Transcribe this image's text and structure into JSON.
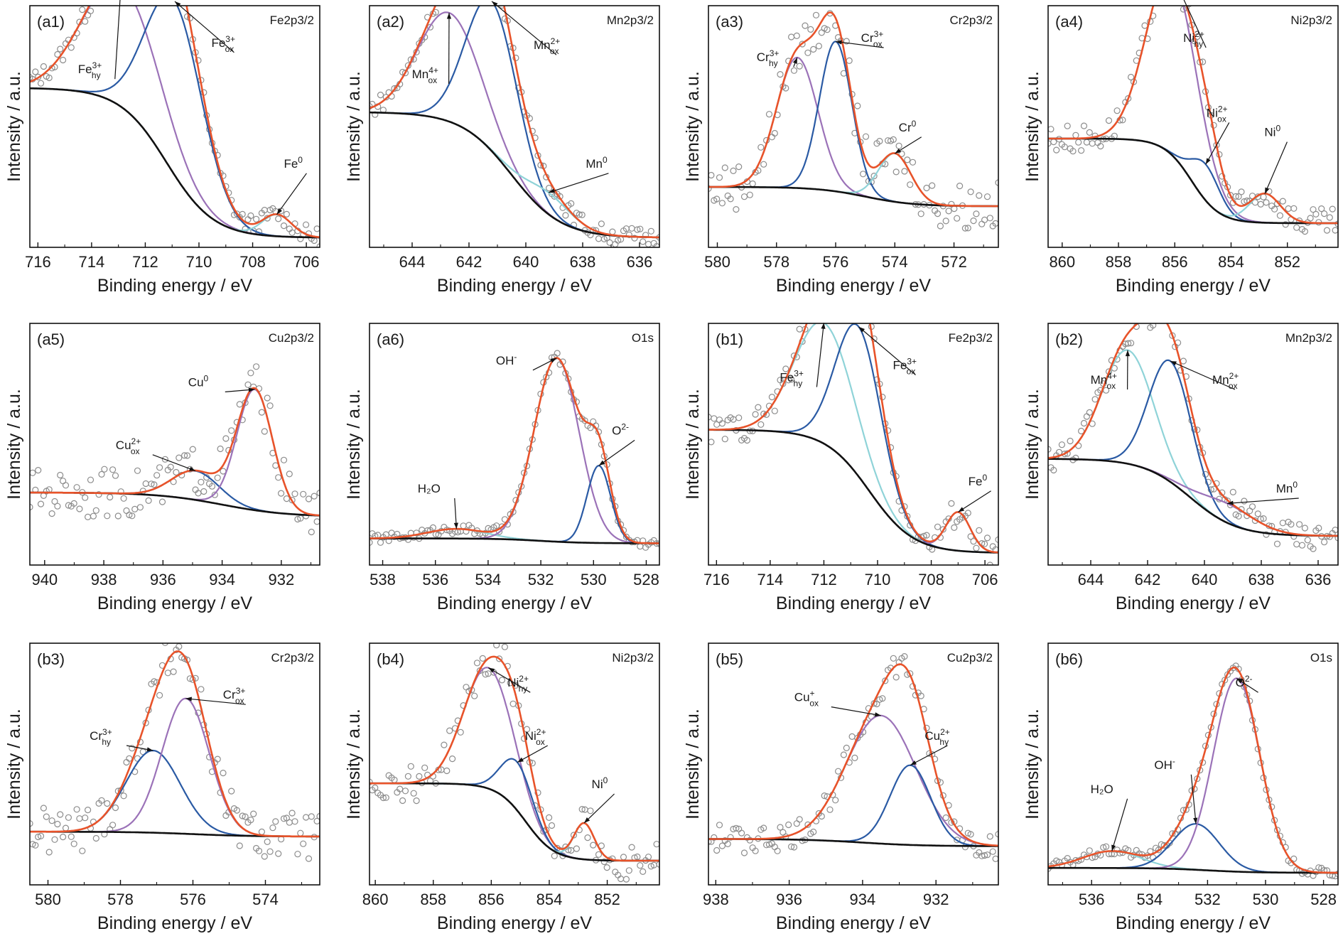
{
  "figure": {
    "xlabel": "Binding energy / eV",
    "ylabel": "Intensity / a.u."
  },
  "colors": {
    "envelope": "#e8532a",
    "background": "#111111",
    "points": "#8c8c8c",
    "blue": "#2a5aa4",
    "purple": "#9b72b8",
    "cyan": "#8fd3d8"
  },
  "chart_data": [
    {
      "id": "a1",
      "type": "line",
      "panel_label": "(a1)",
      "region": "Fe2p3/2",
      "xlim": [
        716.3,
        705.5
      ],
      "ticks": [
        716,
        714,
        712,
        710,
        708,
        706
      ],
      "xlabel": "Binding energy / eV",
      "ylabel": "Intensity / a.u.",
      "grid": false,
      "background_curve": {
        "hi": 0.66,
        "lo": 0.04,
        "mid": 711.2,
        "w": 1.6
      },
      "components": [
        {
          "center": 712.9,
          "height": 0.51,
          "sigma": 1.4,
          "color": "#9b72b8",
          "peak_label": "Fe_hy^3+"
        },
        {
          "center": 710.9,
          "height": 0.72,
          "sigma": 1.05,
          "color": "#2a5aa4",
          "peak_label": "Fe_ox^3+"
        },
        {
          "center": 707.1,
          "height": 0.09,
          "sigma": 0.55,
          "color": "#8fd3d8",
          "peak_label": "Fe^0"
        }
      ],
      "annotations": [
        {
          "text": "Fe",
          "sup": "3+",
          "sub": "hy",
          "at_x": 712.9,
          "tx": [
            0.22,
            0.18
          ]
        },
        {
          "text": "Fe",
          "sup": "3+",
          "sub": "ox",
          "at_x": 710.9,
          "tx": [
            0.68,
            0.07
          ]
        },
        {
          "text": "Fe",
          "sup": "0",
          "sub": "",
          "at_x": 707.1,
          "tx": [
            0.93,
            0.57
          ]
        }
      ],
      "noise": 0.02
    },
    {
      "id": "a2",
      "type": "line",
      "panel_label": "(a2)",
      "region": "Mn2p3/2",
      "xlim": [
        645.5,
        635.3
      ],
      "ticks": [
        644,
        642,
        640,
        638,
        636
      ],
      "xlabel": "Binding energy / eV",
      "ylabel": "Intensity / a.u.",
      "grid": false,
      "background_curve": {
        "hi": 0.56,
        "lo": 0.04,
        "mid": 640.5,
        "w": 1.6
      },
      "components": [
        {
          "center": 642.7,
          "height": 0.45,
          "sigma": 1.1,
          "color": "#9b72b8",
          "peak_label": "Mn_ox^4+"
        },
        {
          "center": 641.2,
          "height": 0.62,
          "sigma": 0.9,
          "color": "#2a5aa4",
          "peak_label": "Mn_ox^2+"
        },
        {
          "center": 639.2,
          "height": 0.09,
          "sigma": 0.8,
          "color": "#8fd3d8",
          "peak_label": "Mn^0"
        }
      ],
      "annotations": [
        {
          "text": "Mn",
          "sup": "4+",
          "sub": "ox",
          "at_x": 642.7,
          "tx": [
            0.2,
            0.2
          ]
        },
        {
          "text": "Mn",
          "sup": "2+",
          "sub": "ox",
          "at_x": 641.2,
          "tx": [
            0.62,
            0.08
          ]
        },
        {
          "text": "Mn",
          "sup": "0",
          "sub": "",
          "at_x": 639.2,
          "tx": [
            0.8,
            0.57
          ]
        }
      ],
      "noise": 0.02
    },
    {
      "id": "a3",
      "type": "line",
      "panel_label": "(a3)",
      "region": "Cr2p3/2",
      "xlim": [
        580.3,
        570.5
      ],
      "ticks": [
        580,
        578,
        576,
        574,
        572
      ],
      "xlabel": "Binding energy / eV",
      "ylabel": "Intensity / a.u.",
      "grid": false,
      "background_curve": {
        "hi": 0.25,
        "lo": 0.17,
        "mid": 575,
        "w": 1.5
      },
      "components": [
        {
          "center": 577.3,
          "height": 0.54,
          "sigma": 0.7,
          "color": "#9b72b8",
          "peak_label": "Cr_hy^3+"
        },
        {
          "center": 576.0,
          "height": 0.62,
          "sigma": 0.55,
          "color": "#2a5aa4",
          "peak_label": "Cr_ox^3+"
        },
        {
          "center": 574.0,
          "height": 0.2,
          "sigma": 0.55,
          "color": "#8fd3d8",
          "peak_label": "Cr^0"
        }
      ],
      "annotations": [
        {
          "text": "Cr",
          "sup": "3+",
          "sub": "hy",
          "at_x": 577.3,
          "tx": [
            0.22,
            0.13
          ]
        },
        {
          "text": "Cr",
          "sup": "3+",
          "sub": "ox",
          "at_x": 576.0,
          "tx": [
            0.58,
            0.05
          ]
        },
        {
          "text": "Cr",
          "sup": "0",
          "sub": "",
          "at_x": 574.0,
          "tx": [
            0.71,
            0.42
          ]
        }
      ],
      "noise": 0.05
    },
    {
      "id": "a4",
      "type": "line",
      "panel_label": "(a4)",
      "region": "Ni2p3/2",
      "xlim": [
        860.5,
        850.2
      ],
      "ticks": [
        860,
        858,
        856,
        854,
        852
      ],
      "xlabel": "Binding energy / eV",
      "ylabel": "Intensity / a.u.",
      "grid": false,
      "background_curve": {
        "hi": 0.45,
        "lo": 0.1,
        "mid": 855.4,
        "w": 0.9
      },
      "components": [
        {
          "center": 856.1,
          "height": 0.75,
          "sigma": 0.9,
          "color": "#9b72b8",
          "peak_label": "Ni_hy^2+"
        },
        {
          "center": 854.9,
          "height": 0.15,
          "sigma": 0.5,
          "color": "#2a5aa4",
          "peak_label": "Ni_ox^2+"
        },
        {
          "center": 852.8,
          "height": 0.12,
          "sigma": 0.55,
          "color": "#8fd3d8",
          "peak_label": "Ni^0"
        }
      ],
      "annotations": [
        {
          "text": "Ni",
          "sup": "2+",
          "sub": "hy",
          "at_x": 856.1,
          "tx": [
            0.52,
            0.05
          ]
        },
        {
          "text": "Ni",
          "sup": "2+",
          "sub": "ox",
          "at_x": 854.9,
          "tx": [
            0.6,
            0.36
          ]
        },
        {
          "text": "Ni",
          "sup": "0",
          "sub": "",
          "at_x": 852.8,
          "tx": [
            0.8,
            0.44
          ]
        }
      ],
      "noise": 0.03
    },
    {
      "id": "a5",
      "type": "line",
      "panel_label": "(a5)",
      "region": "Cu2p3/2",
      "xlim": [
        940.5,
        930.7
      ],
      "ticks": [
        940,
        938,
        936,
        934,
        932
      ],
      "xlabel": "Binding energy / eV",
      "ylabel": "Intensity / a.u.",
      "grid": false,
      "background_curve": {
        "hi": 0.3,
        "lo": 0.2,
        "mid": 934,
        "w": 2.0
      },
      "components": [
        {
          "center": 934.9,
          "height": 0.12,
          "sigma": 0.8,
          "color": "#2a5aa4",
          "peak_label": "Cu_ox^2+"
        },
        {
          "center": 932.9,
          "height": 0.5,
          "sigma": 0.6,
          "color": "#9b72b8",
          "peak_label": "Cu^0"
        }
      ],
      "annotations": [
        {
          "text": "Cu",
          "sup": "2+",
          "sub": "ox",
          "at_x": 934.9,
          "tx": [
            0.35,
            0.42
          ]
        },
        {
          "text": "Cu",
          "sup": "0",
          "sub": "",
          "at_x": 932.9,
          "tx": [
            0.6,
            0.16
          ]
        }
      ],
      "noise": 0.05
    },
    {
      "id": "a6",
      "type": "line",
      "panel_label": "(a6)",
      "region": "O1s",
      "xlim": [
        538.5,
        527.5
      ],
      "ticks": [
        538,
        536,
        534,
        532,
        530,
        528
      ],
      "xlabel": "Binding energy / eV",
      "ylabel": "Intensity / a.u.",
      "grid": false,
      "background_curve": {
        "hi": 0.11,
        "lo": 0.09,
        "mid": 532,
        "w": 1.5
      },
      "components": [
        {
          "center": 535.2,
          "height": 0.04,
          "sigma": 1.1,
          "color": "#8fd3d8",
          "peak_label": "H2O"
        },
        {
          "center": 531.4,
          "height": 0.76,
          "sigma": 0.85,
          "color": "#9b72b8",
          "peak_label": "OH-"
        },
        {
          "center": 529.8,
          "height": 0.32,
          "sigma": 0.45,
          "color": "#2a5aa4",
          "peak_label": "O2-"
        }
      ],
      "annotations": [
        {
          "text": "H₂O",
          "sup": "",
          "sub": "",
          "at_x": 535.2,
          "tx": [
            0.22,
            0.6
          ]
        },
        {
          "text": "OH",
          "sup": "-",
          "sub": "",
          "at_x": 531.4,
          "tx": [
            0.49,
            0.07
          ]
        },
        {
          "text": "O",
          "sup": "2-",
          "sub": "",
          "at_x": 529.8,
          "tx": [
            0.89,
            0.36
          ]
        }
      ],
      "noise": 0.01
    },
    {
      "id": "b1",
      "type": "line",
      "panel_label": "(b1)",
      "region": "Fe2p3/2",
      "xlim": [
        716.3,
        705.5
      ],
      "ticks": [
        716,
        714,
        712,
        710,
        708,
        706
      ],
      "xlabel": "Binding energy / eV",
      "ylabel": "Intensity / a.u.",
      "grid": false,
      "background_curve": {
        "hi": 0.56,
        "lo": 0.05,
        "mid": 710.3,
        "w": 1.5
      },
      "components": [
        {
          "center": 712.0,
          "height": 0.5,
          "sigma": 1.1,
          "color": "#8fd3d8",
          "peak_label": "Fe_hy^3+"
        },
        {
          "center": 710.7,
          "height": 0.62,
          "sigma": 0.85,
          "color": "#2a5aa4",
          "peak_label": "Fe_ox^3+"
        },
        {
          "center": 707.0,
          "height": 0.16,
          "sigma": 0.45,
          "color": "#9b72b8",
          "peak_label": "Fe^0"
        }
      ],
      "annotations": [
        {
          "text": "Fe",
          "sup": "3+",
          "sub": "hy",
          "at_x": 712.0,
          "tx": [
            0.3,
            0.14
          ]
        },
        {
          "text": "Fe",
          "sup": "3+",
          "sub": "ox",
          "at_x": 710.7,
          "tx": [
            0.69,
            0.09
          ]
        },
        {
          "text": "Fe",
          "sup": "0",
          "sub": "",
          "at_x": 707.0,
          "tx": [
            0.95,
            0.57
          ]
        }
      ],
      "noise": 0.03
    },
    {
      "id": "b2",
      "type": "line",
      "panel_label": "(b2)",
      "region": "Mn2p3/2",
      "xlim": [
        645.5,
        635.3
      ],
      "ticks": [
        644,
        642,
        640,
        638,
        636
      ],
      "xlabel": "Binding energy / eV",
      "ylabel": "Intensity / a.u.",
      "grid": false,
      "background_curve": {
        "hi": 0.44,
        "lo": 0.12,
        "mid": 640.5,
        "w": 1.5
      },
      "components": [
        {
          "center": 642.7,
          "height": 0.47,
          "sigma": 0.9,
          "color": "#8fd3d8",
          "peak_label": "Mn_ox^4+"
        },
        {
          "center": 641.2,
          "height": 0.5,
          "sigma": 0.75,
          "color": "#2a5aa4",
          "peak_label": "Mn_ox^2+"
        },
        {
          "center": 639.2,
          "height": 0.08,
          "sigma": 1.0,
          "color": "#9b72b8",
          "peak_label": "Mn^0"
        }
      ],
      "annotations": [
        {
          "text": "Mn",
          "sup": "4+",
          "sub": "ox",
          "at_x": 642.7,
          "tx": [
            0.2,
            0.15
          ]
        },
        {
          "text": "Mn",
          "sup": "2+",
          "sub": "ox",
          "at_x": 641.2,
          "tx": [
            0.62,
            0.15
          ]
        },
        {
          "text": "Mn",
          "sup": "0",
          "sub": "",
          "at_x": 639.2,
          "tx": [
            0.84,
            0.6
          ]
        }
      ],
      "noise": 0.03
    },
    {
      "id": "b3",
      "type": "line",
      "panel_label": "(b3)",
      "region": "Cr2p3/2",
      "xlim": [
        580.5,
        572.5
      ],
      "ticks": [
        580,
        578,
        576,
        574
      ],
      "xlabel": "Binding energy / eV",
      "ylabel": "Intensity / a.u.",
      "grid": false,
      "background_curve": {
        "hi": 0.22,
        "lo": 0.2,
        "mid": 576,
        "w": 1.5
      },
      "components": [
        {
          "center": 577.1,
          "height": 0.34,
          "sigma": 0.75,
          "color": "#2a5aa4",
          "peak_label": "Cr_hy^3+"
        },
        {
          "center": 576.2,
          "height": 0.56,
          "sigma": 0.65,
          "color": "#9b72b8",
          "peak_label": "Cr_ox^3+"
        }
      ],
      "annotations": [
        {
          "text": "Cr",
          "sup": "3+",
          "sub": "hy",
          "at_x": 577.1,
          "tx": [
            0.26,
            0.3
          ]
        },
        {
          "text": "Cr",
          "sup": "3+",
          "sub": "ox",
          "at_x": 576.2,
          "tx": [
            0.72,
            0.13
          ]
        }
      ],
      "noise": 0.05
    },
    {
      "id": "b4",
      "type": "line",
      "panel_label": "(b4)",
      "region": "Ni2p3/2",
      "xlim": [
        860.2,
        850.2
      ],
      "ticks": [
        860,
        858,
        856,
        854,
        852
      ],
      "xlabel": "Binding energy / eV",
      "ylabel": "Intensity / a.u.",
      "grid": false,
      "background_curve": {
        "hi": 0.42,
        "lo": 0.1,
        "mid": 854.8,
        "w": 0.9
      },
      "components": [
        {
          "center": 856.1,
          "height": 0.5,
          "sigma": 0.85,
          "color": "#9b72b8",
          "peak_label": "Ni_hy^2+"
        },
        {
          "center": 855.1,
          "height": 0.2,
          "sigma": 0.55,
          "color": "#2a5aa4",
          "peak_label": "Ni_ox^2+"
        },
        {
          "center": 852.8,
          "height": 0.15,
          "sigma": 0.35,
          "color": "#8fd3d8",
          "peak_label": "Ni^0"
        }
      ],
      "annotations": [
        {
          "text": "Ni",
          "sup": "2+",
          "sub": "hy",
          "at_x": 856.1,
          "tx": [
            0.53,
            0.08
          ]
        },
        {
          "text": "Ni",
          "sup": "2+",
          "sub": "ox",
          "at_x": 855.1,
          "tx": [
            0.59,
            0.3
          ]
        },
        {
          "text": "Ni",
          "sup": "0",
          "sub": "",
          "at_x": 852.8,
          "tx": [
            0.82,
            0.5
          ]
        }
      ],
      "noise": 0.04
    },
    {
      "id": "b5",
      "type": "line",
      "panel_label": "(b5)",
      "region": "Cu2p3/2",
      "xlim": [
        938.2,
        930.3
      ],
      "ticks": [
        938,
        936,
        934,
        932
      ],
      "xlabel": "Binding energy / eV",
      "ylabel": "Intensity / a.u.",
      "grid": false,
      "background_curve": {
        "hi": 0.19,
        "lo": 0.16,
        "mid": 934,
        "w": 1.5
      },
      "components": [
        {
          "center": 933.5,
          "height": 0.53,
          "sigma": 0.95,
          "color": "#9b72b8",
          "peak_label": "Cu_ox^+"
        },
        {
          "center": 932.7,
          "height": 0.33,
          "sigma": 0.55,
          "color": "#2a5aa4",
          "peak_label": "Cu_hy^2+"
        }
      ],
      "annotations": [
        {
          "text": "Cu",
          "sup": "+",
          "sub": "ox",
          "at_x": 933.5,
          "tx": [
            0.35,
            0.14
          ]
        },
        {
          "text": "Cu",
          "sup": "2+",
          "sub": "hy",
          "at_x": 932.7,
          "tx": [
            0.8,
            0.3
          ]
        }
      ],
      "noise": 0.03
    },
    {
      "id": "b6",
      "type": "line",
      "panel_label": "(b6)",
      "region": "O1s",
      "xlim": [
        537.5,
        527.5
      ],
      "ticks": [
        536,
        534,
        532,
        530,
        528
      ],
      "xlabel": "Binding energy / eV",
      "ylabel": "Intensity / a.u.",
      "grid": false,
      "background_curve": {
        "hi": 0.07,
        "lo": 0.05,
        "mid": 532,
        "w": 1.5
      },
      "components": [
        {
          "center": 535.3,
          "height": 0.07,
          "sigma": 1.0,
          "color": "#8fd3d8",
          "peak_label": "H2O"
        },
        {
          "center": 532.4,
          "height": 0.19,
          "sigma": 0.8,
          "color": "#2a5aa4",
          "peak_label": "OH-"
        },
        {
          "center": 531.0,
          "height": 0.8,
          "sigma": 0.8,
          "color": "#9b72b8",
          "peak_label": "O2-"
        }
      ],
      "annotations": [
        {
          "text": "H₂O",
          "sup": "",
          "sub": "",
          "at_x": 535.3,
          "tx": [
            0.2,
            0.52
          ]
        },
        {
          "text": "OH",
          "sup": "-",
          "sub": "",
          "at_x": 532.4,
          "tx": [
            0.42,
            0.42
          ]
        },
        {
          "text": "O",
          "sup": "2-",
          "sub": "",
          "at_x": 531.0,
          "tx": [
            0.7,
            0.08
          ]
        }
      ],
      "noise": 0.01
    }
  ]
}
